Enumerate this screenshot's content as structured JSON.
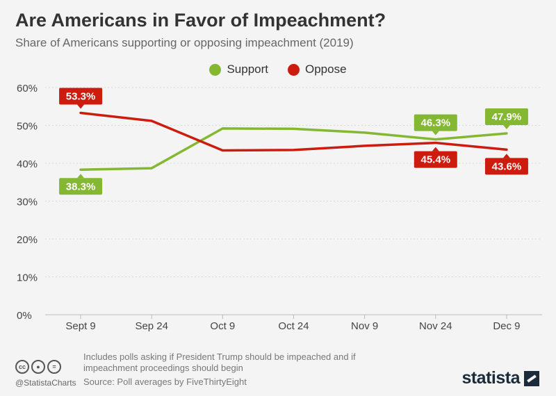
{
  "header": {
    "title": "Are Americans in Favor of Impeachment?",
    "subtitle": "Share of Americans supporting or opposing impeachment (2019)"
  },
  "legend": {
    "support_label": "Support",
    "oppose_label": "Oppose"
  },
  "colors": {
    "support": "#84b832",
    "oppose": "#cc1c0e",
    "grid": "#d8d8d8",
    "axis_text": "#444444"
  },
  "chart_data": {
    "type": "line",
    "categories": [
      "Sept 9",
      "Sep 24",
      "Oct 9",
      "Oct 24",
      "Nov 9",
      "Nov 24",
      "Dec 9"
    ],
    "ylim": [
      0,
      60
    ],
    "yticks": [
      0,
      10,
      20,
      30,
      40,
      50,
      60
    ],
    "ytick_labels": [
      "0%",
      "10%",
      "20%",
      "30%",
      "40%",
      "50%",
      "60%"
    ],
    "grid": true,
    "legend_position": "top-center",
    "series": [
      {
        "name": "Support",
        "values": [
          38.3,
          38.7,
          49.2,
          49.1,
          48.1,
          46.3,
          47.9
        ]
      },
      {
        "name": "Oppose",
        "values": [
          53.3,
          51.2,
          43.4,
          43.5,
          44.6,
          45.4,
          43.6
        ]
      }
    ],
    "annotations": [
      {
        "series": "Support",
        "index": 0,
        "label": "38.3%",
        "side": "below"
      },
      {
        "series": "Support",
        "index": 5,
        "label": "46.3%",
        "side": "above"
      },
      {
        "series": "Support",
        "index": 6,
        "label": "47.9%",
        "side": "above"
      },
      {
        "series": "Oppose",
        "index": 0,
        "label": "53.3%",
        "side": "above"
      },
      {
        "series": "Oppose",
        "index": 5,
        "label": "45.4%",
        "side": "below"
      },
      {
        "series": "Oppose",
        "index": 6,
        "label": "43.6%",
        "side": "below"
      }
    ]
  },
  "footer": {
    "note": "Includes polls asking if President Trump should be impeached and if impeachment proceedings should begin",
    "source": "Source: Poll averages by FiveThirtyEight",
    "handle": "@StatistaCharts",
    "brand": "statista",
    "cc_icons": [
      "cc",
      "by",
      "nd"
    ]
  }
}
